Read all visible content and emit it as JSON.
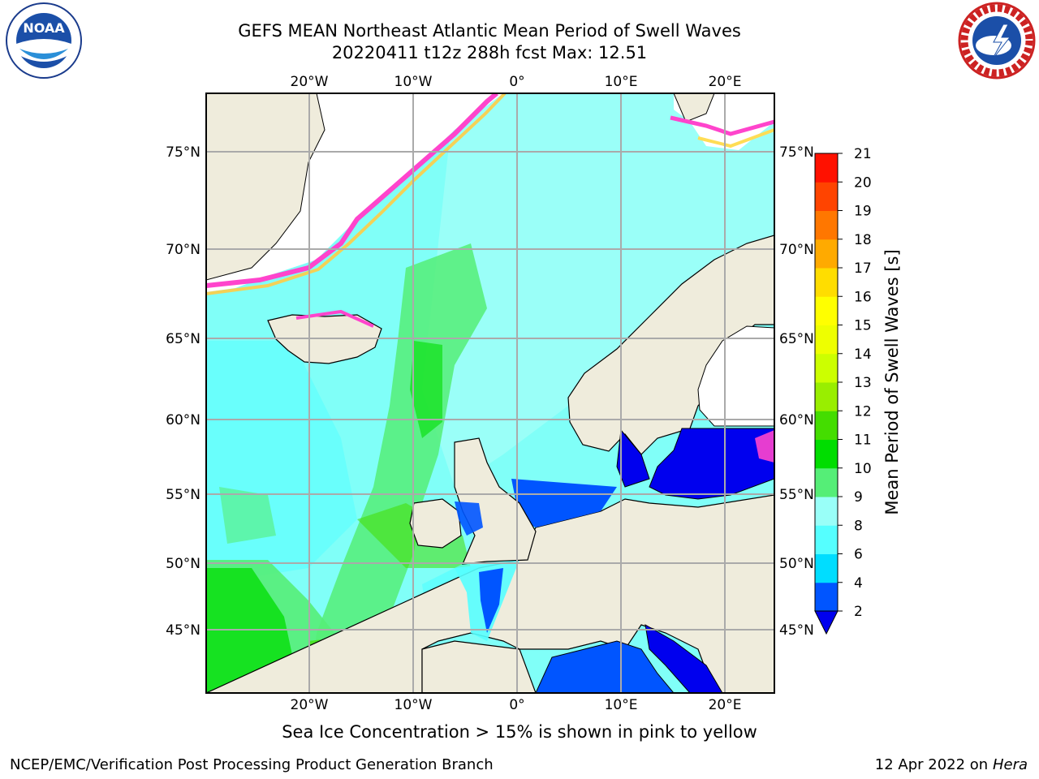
{
  "title_line1": "GEFS MEAN Northeast Atlantic Mean Period of Swell Waves",
  "title_line2": "20220411 t12z 288h fcst   Max: 12.51",
  "logos": {
    "left": {
      "name": "noaa-logo",
      "text": "NOAA",
      "ring_text": "NATIONAL OCEANIC AND ATMOSPHERIC ADMINISTRATION · U.S. DEPARTMENT OF COMMERCE"
    },
    "right": {
      "name": "nws-logo",
      "ring_text": "NATIONAL WEATHER SERVICE"
    }
  },
  "map": {
    "lon_labels": [
      "20°W",
      "10°W",
      "0°",
      "10°E",
      "20°E"
    ],
    "lat_labels": [
      "75°N",
      "70°N",
      "65°N",
      "60°N",
      "55°N",
      "50°N",
      "45°N"
    ],
    "colors": {
      "land": "#efecdc",
      "ocean_base": "#80fff8"
    }
  },
  "colorbar": {
    "label": "Mean Period of Swell Waves [s]",
    "ticks": [
      "2",
      "4",
      "6",
      "8",
      "9",
      "10",
      "11",
      "12",
      "13",
      "14",
      "15",
      "16",
      "17",
      "18",
      "19",
      "20",
      "21"
    ],
    "colors": [
      "#0055ff",
      "#00ddff",
      "#55ffff",
      "#99fff8",
      "#55ee77",
      "#00dd00",
      "#44dd00",
      "#99ee00",
      "#ccff00",
      "#eeff00",
      "#ffff00",
      "#ffdd00",
      "#ffaa00",
      "#ff7700",
      "#ff4400",
      "#ff1100"
    ],
    "under_color": "#0000ee"
  },
  "note": "Sea Ice Concentration > 15% is shown in pink to yellow",
  "footer": {
    "left": "NCEP/EMC/Verification Post Processing Product Generation Branch",
    "right_date": "12 Apr 2022 on ",
    "right_host": "Hera"
  }
}
